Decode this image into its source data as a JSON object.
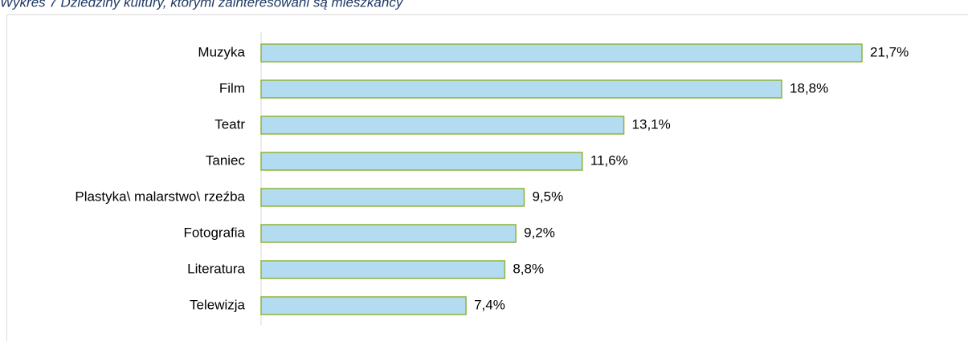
{
  "chart_data": {
    "type": "barh",
    "title": "Wykres 7 Dziedziny kultury, którymi zainteresowani są mieszkańcy",
    "categories": [
      "Muzyka",
      "Film",
      "Teatr",
      "Taniec",
      "Plastyka\\ malarstwo\\ rzeźba",
      "Fotografia",
      "Literatura",
      "Telewizja"
    ],
    "values": [
      21.7,
      18.8,
      13.1,
      11.6,
      9.5,
      9.2,
      8.8,
      7.4
    ],
    "value_labels": [
      "21,7%",
      "18,8%",
      "13,1%",
      "11,6%",
      "9,5%",
      "9,2%",
      "8,8%",
      "7,4%"
    ],
    "color": "#b4dcf0",
    "edge_color": "#8db43c"
  }
}
